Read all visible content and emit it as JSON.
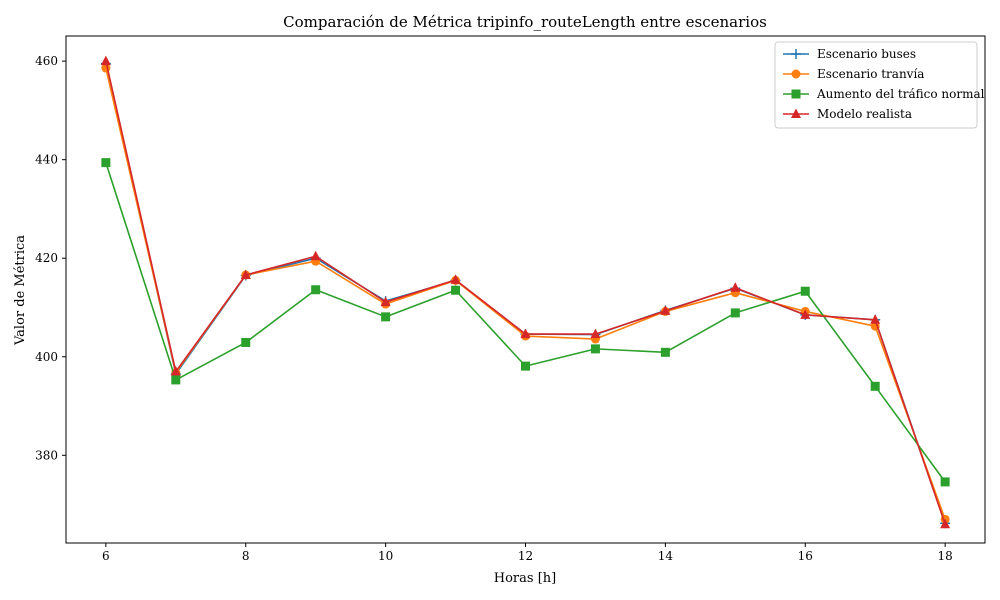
{
  "chart_data": {
    "type": "line",
    "title": "Comparación de Métrica tripinfo_routeLength entre escenarios",
    "xlabel": "Horas [h]",
    "ylabel": "Valor de Métrica",
    "x": [
      6,
      7,
      8,
      9,
      10,
      11,
      12,
      13,
      14,
      15,
      16,
      17,
      18
    ],
    "xlim": [
      5.43,
      18.57
    ],
    "ylim": [
      362.2,
      465.1
    ],
    "xticks": [
      6,
      8,
      10,
      12,
      14,
      16,
      18
    ],
    "yticks": [
      380,
      400,
      420,
      440,
      460
    ],
    "grid": false,
    "legend_position": "top-right",
    "series": [
      {
        "name": "Escenario buses",
        "color": "#1f77b4",
        "marker": "plus",
        "values": [
          459.5,
          396.5,
          416.5,
          420.0,
          411.3,
          415.5,
          404.6,
          404.5,
          409.4,
          413.9,
          408.5,
          407.5,
          366.2
        ]
      },
      {
        "name": "Escenario tranvía",
        "color": "#ff7f0e",
        "marker": "circle",
        "values": [
          458.6,
          396.8,
          416.6,
          419.4,
          410.7,
          415.5,
          404.2,
          403.6,
          409.2,
          413.0,
          409.2,
          406.2,
          367.0
        ]
      },
      {
        "name": "Aumento del tráfico normal",
        "color": "#2ca02c",
        "marker": "square",
        "values": [
          439.4,
          395.3,
          402.9,
          413.6,
          408.1,
          413.5,
          398.1,
          401.6,
          400.9,
          408.9,
          413.3,
          394.0,
          374.6
        ]
      },
      {
        "name": "Modelo realista",
        "color": "#d62728",
        "marker": "triangle",
        "values": [
          460.0,
          397.0,
          416.6,
          420.4,
          411.1,
          415.6,
          404.6,
          404.6,
          409.3,
          414.0,
          408.5,
          407.5,
          366.0
        ]
      }
    ]
  }
}
